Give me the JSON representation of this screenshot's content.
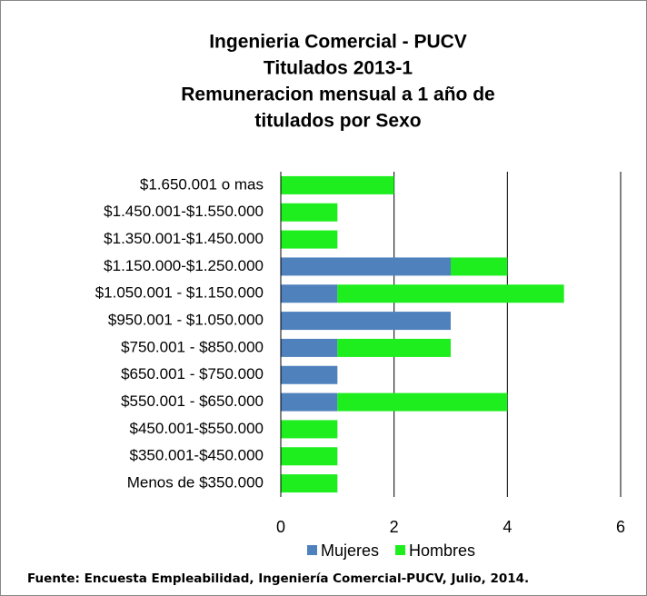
{
  "chart_data": {
    "type": "stacked_barh",
    "title": [
      "Ingenieria  Comercial  - PUCV",
      "Titulados 2013-1",
      "Remuneracion  mensual a 1 año de",
      "titulados  por  Sexo"
    ],
    "categories": [
      "$1.650.001 o mas",
      "$1.450.001-$1.550.000",
      "$1.350.001-$1.450.000",
      "$1.150.000-$1.250.000",
      "$1.050.001 - $1.150.000",
      "$950.001 - $1.050.000",
      "$750.001 - $850.000",
      "$650.001 - $750.000",
      "$550.001 - $650.000",
      "$450.001-$550.000",
      "$350.001-$450.000",
      "Menos de $350.000"
    ],
    "series": [
      {
        "name": "Mujeres",
        "color": "#4f81bd",
        "values": [
          0,
          0,
          0,
          3,
          1,
          3,
          1,
          1,
          1,
          0,
          0,
          0
        ]
      },
      {
        "name": "Hombres",
        "color": "#1eee1e",
        "values": [
          2,
          1,
          1,
          1,
          4,
          0,
          2,
          0,
          3,
          1,
          1,
          1
        ]
      }
    ],
    "xlim": [
      0,
      6
    ],
    "xticks": [
      0,
      2,
      4,
      6
    ],
    "grid": true,
    "legend": "bottom",
    "source": "Fuente: Encuesta Empleabilidad, Ingeniería Comercial-PUCV, Julio, 2014."
  }
}
